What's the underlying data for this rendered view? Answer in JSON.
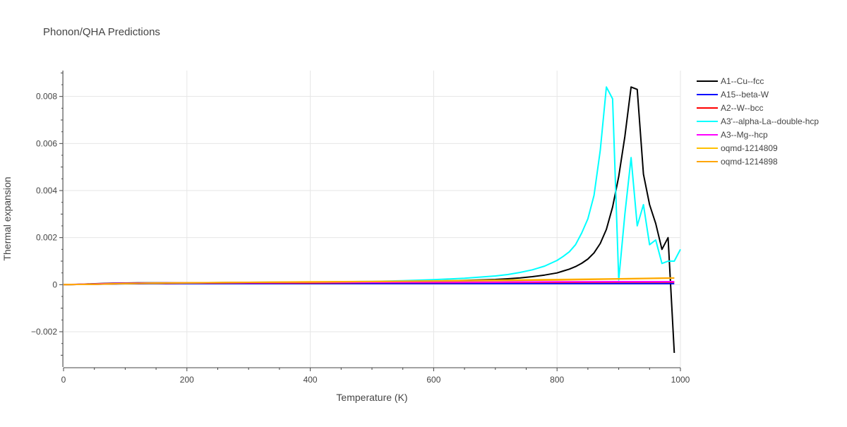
{
  "chart_data": {
    "type": "line",
    "title": "Phonon/QHA Predictions",
    "xlabel": "Temperature (K)",
    "ylabel": "Thermal expansion",
    "xlim": [
      0,
      1000
    ],
    "ylim": [
      -0.0035,
      0.0091
    ],
    "x_ticks": [
      0,
      200,
      400,
      600,
      800,
      1000
    ],
    "y_ticks": [
      -0.002,
      0,
      0.002,
      0.004,
      0.006,
      0.008
    ],
    "x_tick_labels": [
      "0",
      "200",
      "400",
      "600",
      "800",
      "1000"
    ],
    "y_tick_labels": [
      "−0.002",
      "0",
      "0.002",
      "0.004",
      "0.006",
      "0.008"
    ],
    "grid": true,
    "legend_position": "top-right outside",
    "series": [
      {
        "name": "A1--Cu--fcc",
        "color": "#000000",
        "points": [
          [
            0,
            0
          ],
          [
            20,
            1e-05
          ],
          [
            40,
            3e-05
          ],
          [
            60,
            5e-05
          ],
          [
            80,
            6e-05
          ],
          [
            100,
            7e-05
          ],
          [
            120,
            8e-05
          ],
          [
            150,
            8e-05
          ],
          [
            200,
            8e-05
          ],
          [
            300,
            9e-05
          ],
          [
            400,
            0.0001
          ],
          [
            500,
            0.00012
          ],
          [
            600,
            0.00015
          ],
          [
            650,
            0.00018
          ],
          [
            700,
            0.00022
          ],
          [
            720,
            0.00025
          ],
          [
            740,
            0.00029
          ],
          [
            760,
            0.00034
          ],
          [
            780,
            0.00041
          ],
          [
            800,
            0.0005
          ],
          [
            810,
            0.00058
          ],
          [
            820,
            0.00066
          ],
          [
            830,
            0.00077
          ],
          [
            840,
            0.00091
          ],
          [
            850,
            0.00109
          ],
          [
            860,
            0.00135
          ],
          [
            870,
            0.00175
          ],
          [
            880,
            0.00235
          ],
          [
            890,
            0.0033
          ],
          [
            900,
            0.0046
          ],
          [
            910,
            0.0063
          ],
          [
            920,
            0.0084
          ],
          [
            930,
            0.0083
          ],
          [
            940,
            0.0047
          ],
          [
            950,
            0.0034
          ],
          [
            960,
            0.0026
          ],
          [
            970,
            0.0015
          ],
          [
            980,
            0.002
          ],
          [
            990,
            -0.0029
          ]
        ]
      },
      {
        "name": "A15--beta-W",
        "color": "#0000ff",
        "points": [
          [
            0,
            0
          ],
          [
            50,
            2e-05
          ],
          [
            100,
            4e-05
          ],
          [
            200,
            5e-05
          ],
          [
            300,
            5e-05
          ],
          [
            400,
            5e-05
          ],
          [
            500,
            5e-05
          ],
          [
            600,
            5e-05
          ],
          [
            700,
            5e-05
          ],
          [
            800,
            5e-05
          ],
          [
            900,
            5e-05
          ],
          [
            990,
            5e-05
          ]
        ]
      },
      {
        "name": "A2--W--bcc",
        "color": "#ff0000",
        "points": [
          [
            0,
            0
          ],
          [
            50,
            2e-05
          ],
          [
            100,
            5e-05
          ],
          [
            200,
            7e-05
          ],
          [
            300,
            8e-05
          ],
          [
            400,
            8e-05
          ],
          [
            500,
            9e-05
          ],
          [
            600,
            9e-05
          ],
          [
            700,
            0.0001
          ],
          [
            800,
            0.0001
          ],
          [
            900,
            0.00011
          ],
          [
            990,
            0.00011
          ]
        ]
      },
      {
        "name": "A3'--alpha-La--double-hcp",
        "color": "#00ffff",
        "points": [
          [
            0,
            0
          ],
          [
            100,
            5e-05
          ],
          [
            200,
            8e-05
          ],
          [
            300,
            0.0001
          ],
          [
            400,
            0.00011
          ],
          [
            500,
            0.00014
          ],
          [
            550,
            0.00017
          ],
          [
            600,
            0.00021
          ],
          [
            650,
            0.00027
          ],
          [
            700,
            0.00037
          ],
          [
            720,
            0.00043
          ],
          [
            740,
            0.00052
          ],
          [
            760,
            0.00063
          ],
          [
            780,
            0.00079
          ],
          [
            800,
            0.00103
          ],
          [
            810,
            0.0012
          ],
          [
            820,
            0.0014
          ],
          [
            830,
            0.0017
          ],
          [
            840,
            0.0022
          ],
          [
            850,
            0.0028
          ],
          [
            860,
            0.0038
          ],
          [
            870,
            0.0057
          ],
          [
            880,
            0.0084
          ],
          [
            890,
            0.0079
          ],
          [
            900,
            0.0002
          ],
          [
            910,
            0.003
          ],
          [
            920,
            0.0054
          ],
          [
            930,
            0.0025
          ],
          [
            940,
            0.0034
          ],
          [
            950,
            0.0017
          ],
          [
            960,
            0.0019
          ],
          [
            970,
            0.0009
          ],
          [
            980,
            0.001
          ],
          [
            990,
            0.001
          ],
          [
            1000,
            0.0015
          ]
        ]
      },
      {
        "name": "A3--Mg--hcp",
        "color": "#ff00ff",
        "points": [
          [
            0,
            0
          ],
          [
            50,
            3e-05
          ],
          [
            100,
            6e-05
          ],
          [
            200,
            8e-05
          ],
          [
            300,
            9e-05
          ],
          [
            400,
            0.0001
          ],
          [
            500,
            0.0001
          ],
          [
            600,
            0.00011
          ],
          [
            700,
            0.00011
          ],
          [
            800,
            0.00012
          ],
          [
            900,
            0.00013
          ],
          [
            990,
            0.00013
          ]
        ]
      },
      {
        "name": "oqmd-1214809",
        "color": "#ffc000",
        "points": [
          [
            0,
            0
          ],
          [
            50,
            2e-05
          ],
          [
            100,
            5e-05
          ],
          [
            200,
            8e-05
          ],
          [
            300,
            0.0001
          ],
          [
            400,
            0.00012
          ],
          [
            500,
            0.00014
          ],
          [
            600,
            0.00016
          ],
          [
            700,
            0.00019
          ],
          [
            800,
            0.00022
          ],
          [
            900,
            0.00025
          ],
          [
            990,
            0.00029
          ]
        ]
      },
      {
        "name": "oqmd-1214898",
        "color": "#ffa500",
        "points": [
          [
            0,
            0
          ],
          [
            50,
            2e-05
          ],
          [
            100,
            5e-05
          ],
          [
            200,
            8e-05
          ],
          [
            300,
            0.0001
          ],
          [
            400,
            0.00011
          ],
          [
            500,
            0.00013
          ],
          [
            600,
            0.00015
          ],
          [
            700,
            0.00017
          ],
          [
            800,
            0.0002
          ],
          [
            900,
            0.00024
          ],
          [
            990,
            0.00028
          ]
        ]
      }
    ]
  }
}
